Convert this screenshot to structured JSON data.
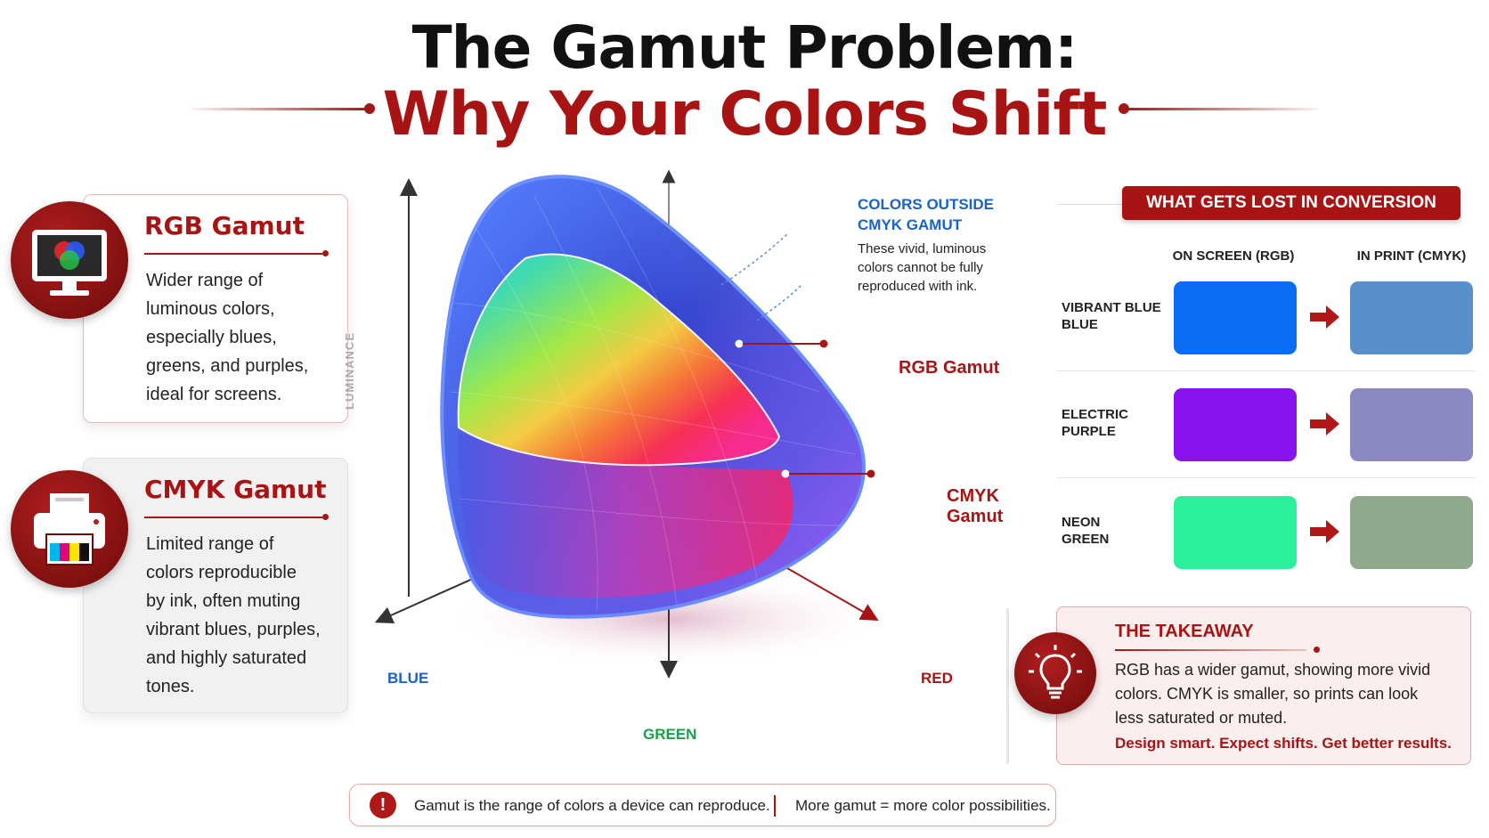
{
  "header": {
    "title_line1": "The Gamut Problem:",
    "title_line2": "Why Your Colors Shift"
  },
  "rgb_card": {
    "icon": "monitor-icon",
    "title": "RGB Gamut",
    "lines": [
      "Wider range of",
      "luminous colors,",
      "especially blues,",
      "greens, and purples,",
      "ideal for screens."
    ]
  },
  "cmyk_card": {
    "icon": "printer-icon",
    "title": "CMYK Gamut",
    "lines": [
      "Limited range of",
      "colors reproducible",
      "by ink, often muting",
      "vibrant blues, purples,",
      "and highly saturated",
      "tones."
    ]
  },
  "diagram": {
    "vertical_axis_label": "LUMINANCE",
    "axis_blue": "BLUE",
    "axis_green": "GREEN",
    "axis_red": "RED",
    "callout_title_line1": "COLORS OUTSIDE",
    "callout_title_line2": "CMYK GAMUT",
    "callout_text": [
      "These vivid, luminous",
      "colors cannot be fully",
      "reproduced with ink."
    ],
    "rgb_label": "RGB Gamut",
    "cmyk_label_line1": "CMYK",
    "cmyk_label_line2": "Gamut"
  },
  "conversion": {
    "banner": "WHAT GETS LOST IN CONVERSION",
    "col_screen": "ON SCREEN (RGB)",
    "col_print": "IN PRINT (CMYK)",
    "rows": [
      {
        "label_line1": "VIBRANT BLUE",
        "label_line2": "BLUE",
        "rgb_color": "#0a6cf5",
        "cmyk_color": "#5a8fcd"
      },
      {
        "label_line1": "ELECTRIC",
        "label_line2": "PURPLE",
        "rgb_color": "#8a12ee",
        "cmyk_color": "#8c88c2"
      },
      {
        "label_line1": "NEON",
        "label_line2": "GREEN",
        "rgb_color": "#2af09a",
        "cmyk_color": "#8ea98c"
      }
    ]
  },
  "takeaway": {
    "icon": "lightbulb-icon",
    "title": "THE TAKEAWAY",
    "lines": [
      "RGB has a wider gamut, showing more vivid",
      "colors. CMYK is smaller, so prints can look",
      "less saturated or muted."
    ],
    "cta": "Design smart. Expect shifts. Get better results."
  },
  "footer": {
    "icon": "alert-icon",
    "text_left": "Gamut is the range of colors a device can reproduce.",
    "text_right": "More gamut = more color possibilities."
  },
  "colors": {
    "accent": "#a81414",
    "callout_blue": "#1a63c4",
    "green_axis": "#1aa04a"
  }
}
